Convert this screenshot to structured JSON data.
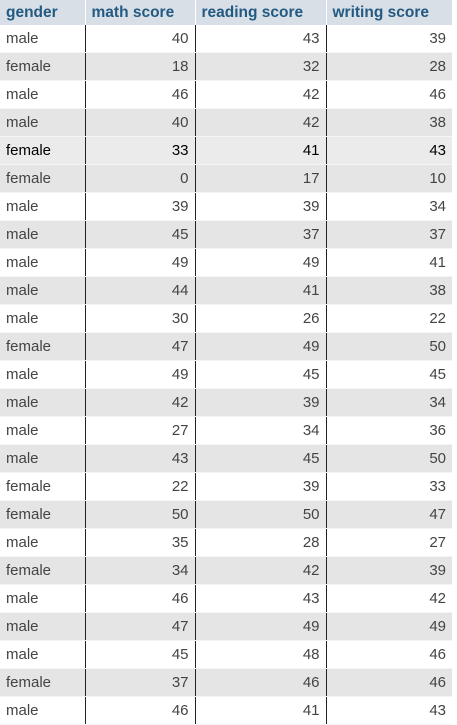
{
  "table": {
    "columns": [
      "gender",
      "math score",
      "reading score",
      "writing score"
    ],
    "highlighted_row": 4,
    "rows": [
      [
        "male",
        "40",
        "43",
        "39"
      ],
      [
        "female",
        "18",
        "32",
        "28"
      ],
      [
        "male",
        "46",
        "42",
        "46"
      ],
      [
        "male",
        "40",
        "42",
        "38"
      ],
      [
        "female",
        "33",
        "41",
        "43"
      ],
      [
        "female",
        "0",
        "17",
        "10"
      ],
      [
        "male",
        "39",
        "39",
        "34"
      ],
      [
        "male",
        "45",
        "37",
        "37"
      ],
      [
        "male",
        "49",
        "49",
        "41"
      ],
      [
        "male",
        "44",
        "41",
        "38"
      ],
      [
        "male",
        "30",
        "26",
        "22"
      ],
      [
        "female",
        "47",
        "49",
        "50"
      ],
      [
        "male",
        "49",
        "45",
        "45"
      ],
      [
        "male",
        "42",
        "39",
        "34"
      ],
      [
        "male",
        "27",
        "34",
        "36"
      ],
      [
        "male",
        "43",
        "45",
        "50"
      ],
      [
        "female",
        "22",
        "39",
        "33"
      ],
      [
        "female",
        "50",
        "50",
        "47"
      ],
      [
        "male",
        "35",
        "28",
        "27"
      ],
      [
        "female",
        "34",
        "42",
        "39"
      ],
      [
        "male",
        "46",
        "43",
        "42"
      ],
      [
        "male",
        "47",
        "49",
        "49"
      ],
      [
        "male",
        "45",
        "48",
        "46"
      ],
      [
        "female",
        "37",
        "46",
        "46"
      ],
      [
        "male",
        "46",
        "41",
        "43"
      ]
    ]
  },
  "colors": {
    "header_bg": "#d8dfe7",
    "header_text": "#235a81",
    "row_alt_bg": "#e5e5e5",
    "cell_text": "#444444"
  }
}
